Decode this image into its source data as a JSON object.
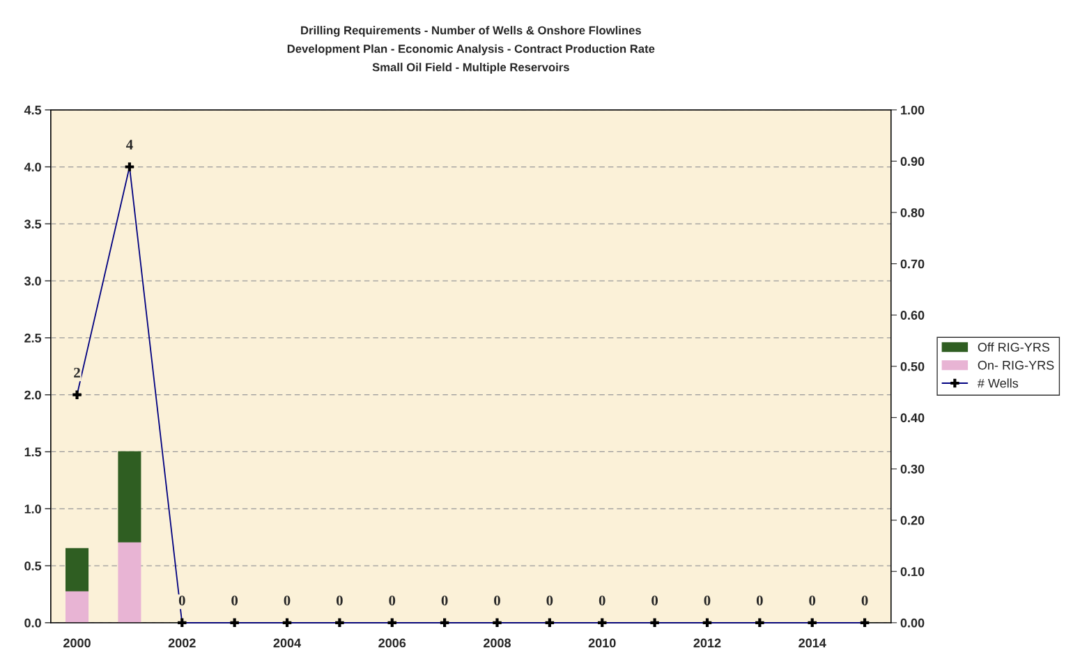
{
  "chart_data": {
    "type": "bar",
    "title": "Drilling Requirements - Number of Wells & Onshore Flowlines\nDevelopment Plan - Economic Analysis - Contract Production Rate\nSmall Oil Field - Multiple Reservoirs",
    "categories": [
      "2000",
      null,
      "2002",
      null,
      "2004",
      null,
      "2006",
      null,
      "2008",
      null,
      "2010",
      null,
      "2012",
      null,
      "2014",
      null
    ],
    "stacked": true,
    "series": [
      {
        "name": "On- RIG-YRS",
        "color": "#e8b4d4",
        "values": [
          0.28,
          0.71,
          0,
          0,
          0,
          0,
          0,
          0,
          0,
          0,
          0,
          0,
          0,
          0,
          0,
          0
        ]
      },
      {
        "name": "Off RIG-YRS",
        "color": "#2f5e22",
        "values": [
          0.37,
          0.79,
          0,
          0,
          0,
          0,
          0,
          0,
          0,
          0,
          0,
          0,
          0,
          0,
          0,
          0
        ]
      },
      {
        "name": "# Wells",
        "type": "line",
        "color": "#000080",
        "marker": "cross",
        "data_labels": true,
        "values": [
          2,
          4,
          0,
          0,
          0,
          0,
          0,
          0,
          0,
          0,
          0,
          0,
          0,
          0,
          0,
          0
        ]
      }
    ],
    "ylim": [
      0,
      4.5
    ],
    "yticks": [
      {
        "value": 0,
        "label": "0.0"
      },
      {
        "value": 0.5,
        "label": "0.5"
      },
      {
        "value": 1,
        "label": "1.0"
      },
      {
        "value": 1.5,
        "label": "1.5"
      },
      {
        "value": 2,
        "label": "2.0"
      },
      {
        "value": 2.5,
        "label": "2.5"
      },
      {
        "value": 3,
        "label": "3.0"
      },
      {
        "value": 3.5,
        "label": "3.5"
      },
      {
        "value": 4,
        "label": "4.0"
      },
      {
        "value": 4.5,
        "label": "4.5"
      }
    ],
    "y2lim": [
      0,
      1
    ],
    "y2ticks": [
      {
        "value": 0,
        "label": "0.00"
      },
      {
        "value": 0.1,
        "label": "0.10"
      },
      {
        "value": 0.2,
        "label": "0.20"
      },
      {
        "value": 0.3,
        "label": "0.30"
      },
      {
        "value": 0.4,
        "label": "0.40"
      },
      {
        "value": 0.5,
        "label": "0.50"
      },
      {
        "value": 0.6,
        "label": "0.60"
      },
      {
        "value": 0.7,
        "label": "0.70"
      },
      {
        "value": 0.8,
        "label": "0.80"
      },
      {
        "value": 0.9,
        "label": "0.90"
      },
      {
        "value": 1,
        "label": "1.00"
      }
    ],
    "grid": "y",
    "legend": "right"
  }
}
